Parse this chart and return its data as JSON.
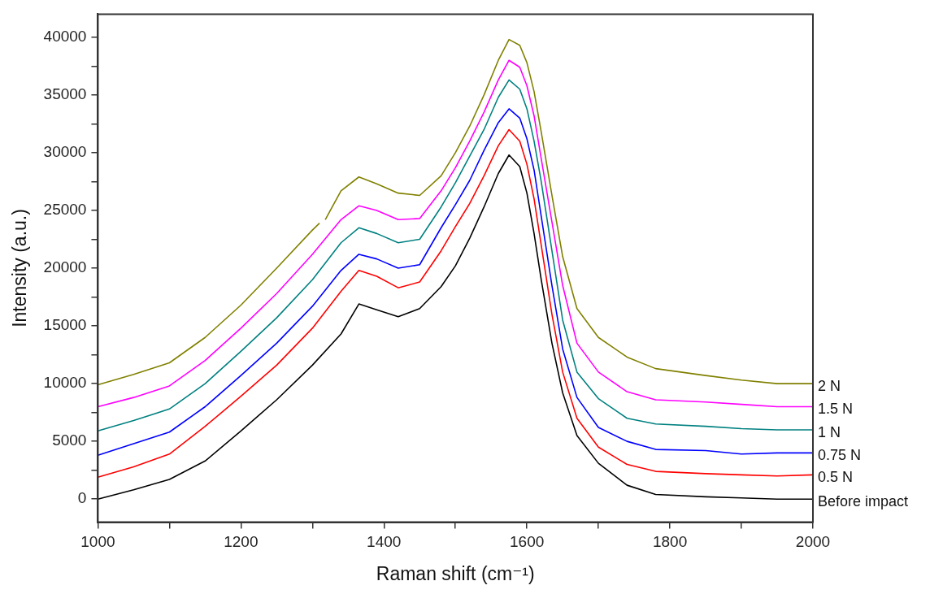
{
  "chart_data": {
    "type": "line",
    "xlabel": "Raman shift (cm⁻¹)",
    "ylabel": "Intensity (a.u.)",
    "xlim": [
      1000,
      2000
    ],
    "xticks": [
      1000,
      {
        "value": 1100,
        "label": null
      },
      1200,
      {
        "value": 1300,
        "label": null
      },
      1400,
      {
        "value": 1500,
        "label": null
      },
      1600,
      {
        "value": 1700,
        "label": null
      },
      1800,
      {
        "value": 1900,
        "label": null
      },
      2000
    ],
    "ylim": [
      -2000,
      42000
    ],
    "yticks": [
      0,
      {
        "value": 2500,
        "label": null
      },
      5000,
      {
        "value": 7500,
        "label": null
      },
      10000,
      {
        "value": 12500,
        "label": null
      },
      15000,
      {
        "value": 17500,
        "label": null
      },
      20000,
      {
        "value": 22500,
        "label": null
      },
      25000,
      {
        "value": 27500,
        "label": null
      },
      30000,
      {
        "value": 32500,
        "label": null
      },
      35000,
      {
        "value": 37500,
        "label": null
      },
      40000
    ],
    "grid": false,
    "legend": false,
    "x": [
      1000,
      1050,
      1100,
      1150,
      1200,
      1250,
      1300,
      1340,
      1365,
      1390,
      1420,
      1450,
      1480,
      1500,
      1520,
      1540,
      1560,
      1575,
      1590,
      1600,
      1610,
      1620,
      1635,
      1650,
      1670,
      1700,
      1740,
      1780,
      1850,
      1900,
      1950,
      2000
    ],
    "series": [
      {
        "name": "Before impact",
        "color": "#000000",
        "values": [
          0,
          800,
          1700,
          3300,
          5900,
          8600,
          11600,
          14300,
          16900,
          16400,
          15800,
          16500,
          18400,
          20200,
          22600,
          25300,
          28200,
          29800,
          28800,
          26500,
          23000,
          19000,
          13500,
          9200,
          5500,
          3100,
          1200,
          400,
          200,
          100,
          0,
          0
        ]
      },
      {
        "name": "0.5 N",
        "color": "#ff0000",
        "values": [
          1900,
          2800,
          3900,
          6300,
          8900,
          11600,
          14800,
          18000,
          19800,
          19300,
          18300,
          18800,
          21500,
          23600,
          25600,
          28000,
          30600,
          32000,
          31000,
          29000,
          26000,
          22000,
          16000,
          11000,
          7000,
          4500,
          3000,
          2400,
          2200,
          2100,
          2000,
          2100
        ]
      },
      {
        "name": "0.75 N",
        "color": "#0000ff",
        "values": [
          3800,
          4800,
          5800,
          8000,
          10700,
          13500,
          16700,
          19800,
          21200,
          20800,
          20000,
          20300,
          23500,
          25500,
          27600,
          30200,
          32600,
          33800,
          33000,
          31200,
          28500,
          24500,
          18500,
          13000,
          8800,
          6200,
          5000,
          4300,
          4200,
          3900,
          4000,
          4000
        ]
      },
      {
        "name": "1 N",
        "color": "#008080",
        "values": [
          5900,
          6800,
          7800,
          10000,
          12800,
          15700,
          19000,
          22200,
          23500,
          23000,
          22200,
          22500,
          25300,
          27400,
          29700,
          32000,
          34800,
          36300,
          35500,
          33800,
          31000,
          27500,
          21500,
          15500,
          11000,
          8700,
          7000,
          6500,
          6300,
          6100,
          6000,
          6000
        ]
      },
      {
        "name": "1.5 N",
        "color": "#ff00ff",
        "values": [
          8000,
          8800,
          9800,
          12000,
          14800,
          17800,
          21200,
          24200,
          25400,
          25000,
          24200,
          24300,
          26700,
          28700,
          31000,
          33500,
          36300,
          38000,
          37400,
          35800,
          33200,
          29500,
          24000,
          18500,
          13500,
          11000,
          9300,
          8600,
          8400,
          8200,
          8000,
          8000
        ]
      },
      {
        "name": "2 N",
        "color": "#808000",
        "x": [
          1000,
          1050,
          1100,
          1150,
          1200,
          1250,
          1300,
          1310,
          1314,
          1318,
          1340,
          1365,
          1390,
          1420,
          1450,
          1480,
          1500,
          1520,
          1540,
          1560,
          1575,
          1590,
          1600,
          1610,
          1620,
          1635,
          1650,
          1670,
          1700,
          1740,
          1780,
          1850,
          1900,
          1950,
          2000
        ],
        "values": [
          9900,
          10800,
          11800,
          14000,
          16800,
          20000,
          23300,
          23900,
          null,
          24200,
          26700,
          27900,
          27300,
          26500,
          26300,
          28000,
          30000,
          32300,
          35000,
          38000,
          39800,
          39300,
          37800,
          35300,
          31800,
          26300,
          21000,
          16500,
          14000,
          12300,
          11300,
          10700,
          10300,
          10000,
          10000
        ]
      }
    ]
  }
}
